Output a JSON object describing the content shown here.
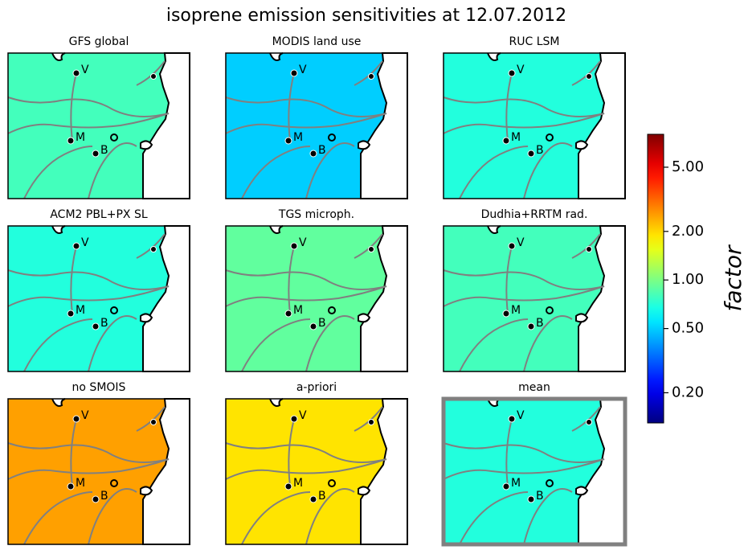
{
  "chart_data": {
    "type": "map-grid",
    "title": "isoprene emission sensitivities at 12.07.2012",
    "sites": [
      {
        "label": "V"
      },
      {
        "label": "M"
      },
      {
        "label": "B"
      }
    ],
    "panels": [
      {
        "title": "GFS global",
        "value": 0.8
      },
      {
        "title": "MODIS land use",
        "value": 0.5
      },
      {
        "title": "RUC LSM",
        "value": 0.7
      },
      {
        "title": "ACM2 PBL+PX SL",
        "value": 0.7
      },
      {
        "title": "TGS microph.",
        "value": 0.9
      },
      {
        "title": "Dudhia+RRTM rad.",
        "value": 0.8
      },
      {
        "title": "no SMOIS",
        "value": 2.5
      },
      {
        "title": "a-priori",
        "value": 1.9
      },
      {
        "title": "mean",
        "value": 0.7,
        "frame_color": "#808080"
      }
    ],
    "colorbar": {
      "label": "factor",
      "log": true,
      "ylim": [
        0.13,
        8
      ],
      "yticks": [
        {
          "value": 0.2,
          "label": "0.20"
        },
        {
          "value": 0.5,
          "label": "0.50"
        },
        {
          "value": 1,
          "label": "1.00"
        },
        {
          "value": 2,
          "label": "2.00"
        },
        {
          "value": 5,
          "label": "5.00"
        }
      ]
    }
  }
}
